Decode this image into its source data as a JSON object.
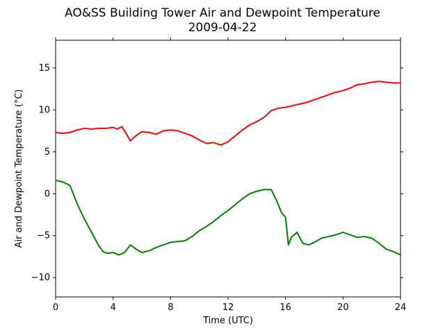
{
  "chart_data": {
    "type": "line",
    "title": "AO&SS Building Tower Air and Dewpoint Temperature",
    "subtitle": "2009-04-22",
    "xlabel": "Time (UTC)",
    "ylabel": "Air and Dewpoint Temperature (°C)",
    "xlim": [
      0,
      24
    ],
    "ylim": [
      -12.3,
      18.3
    ],
    "xticks": [
      0,
      4,
      8,
      12,
      16,
      20,
      24
    ],
    "xtick_labels": [
      "0",
      "4",
      "8",
      "12",
      "16",
      "20",
      "24"
    ],
    "yticks": [
      -10,
      -5,
      0,
      5,
      10,
      15
    ],
    "ytick_labels": [
      "−10",
      "−5",
      "0",
      "5",
      "10",
      "15"
    ],
    "grid": false,
    "legend": "none",
    "series": [
      {
        "color": "#ff0000",
        "x": [
          0,
          0.5,
          1,
          1.5,
          2,
          2.5,
          3,
          3.5,
          4,
          4.3,
          4.6,
          4.9,
          5.2,
          5.5,
          6,
          6.5,
          7,
          7.5,
          8,
          8.5,
          9,
          9.5,
          10,
          10.5,
          11,
          11.5,
          12,
          12.5,
          13,
          13.5,
          14,
          14.5,
          15,
          15.5,
          16,
          16.5,
          17,
          17.5,
          18,
          18.5,
          19,
          19.5,
          20,
          20.5,
          21,
          21.5,
          22,
          22.5,
          23,
          23.5,
          24
        ],
        "y": [
          7.3,
          7.2,
          7.3,
          7.6,
          7.8,
          7.7,
          7.8,
          7.8,
          7.9,
          7.7,
          8.0,
          7.2,
          6.3,
          6.8,
          7.4,
          7.3,
          7.1,
          7.5,
          7.6,
          7.5,
          7.2,
          6.9,
          6.4,
          6.0,
          6.1,
          5.8,
          6.2,
          6.9,
          7.6,
          8.2,
          8.6,
          9.1,
          9.9,
          10.2,
          10.3,
          10.5,
          10.7,
          10.9,
          11.2,
          11.5,
          11.8,
          12.1,
          12.3,
          12.6,
          13.0,
          13.1,
          13.3,
          13.4,
          13.3,
          13.2,
          13.2
        ]
      },
      {
        "color": "#008000",
        "x": [
          0,
          0.5,
          1,
          1.5,
          2,
          2.5,
          3,
          3.3,
          3.6,
          4,
          4.4,
          4.8,
          5.2,
          5.6,
          6,
          6.5,
          7,
          7.5,
          8,
          8.5,
          9,
          9.5,
          10,
          10.5,
          11,
          11.5,
          12,
          12.5,
          13,
          13.5,
          14,
          14.5,
          15,
          15.4,
          15.7,
          16,
          16.2,
          16.4,
          16.8,
          17.2,
          17.6,
          18,
          18.5,
          19,
          19.5,
          20,
          20.5,
          21,
          21.5,
          22,
          22.5,
          23,
          23.5,
          24
        ],
        "y": [
          1.6,
          1.4,
          1.0,
          -1.2,
          -3.0,
          -4.6,
          -6.2,
          -6.9,
          -7.1,
          -7.0,
          -7.3,
          -7.0,
          -6.1,
          -6.6,
          -7.0,
          -6.8,
          -6.4,
          -6.1,
          -5.8,
          -5.7,
          -5.6,
          -5.1,
          -4.4,
          -3.9,
          -3.3,
          -2.6,
          -2.0,
          -1.3,
          -0.6,
          0.0,
          0.3,
          0.5,
          0.5,
          -0.9,
          -2.2,
          -2.8,
          -6.1,
          -5.2,
          -4.6,
          -5.9,
          -6.1,
          -5.8,
          -5.3,
          -5.1,
          -4.9,
          -4.6,
          -4.9,
          -5.2,
          -5.1,
          -5.3,
          -5.9,
          -6.6,
          -6.9,
          -7.3
        ]
      }
    ]
  }
}
